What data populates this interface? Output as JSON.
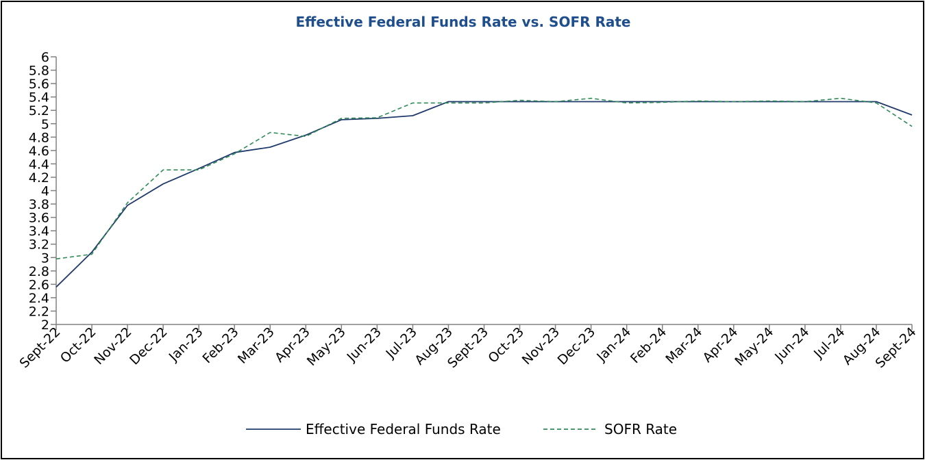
{
  "chart_data": {
    "type": "line",
    "title": "Effective Federal Funds Rate vs. SOFR Rate",
    "xlabel": "",
    "ylabel": "",
    "ylim": [
      2,
      6
    ],
    "yticks": [
      "2",
      "2.2",
      "2.4",
      "2.6",
      "2.8",
      "3",
      "3.2",
      "3.4",
      "3.6",
      "3.8",
      "4",
      "4.2",
      "4.4",
      "4.6",
      "4.8",
      "5",
      "5.2",
      "5.4",
      "5.6",
      "5.8",
      "6"
    ],
    "grid": false,
    "legend_position": "bottom",
    "categories": [
      "Sept-22",
      "Oct-22",
      "Nov-22",
      "Dec-22",
      "Jan-23",
      "Feb-23",
      "Mar-23",
      "Apr-23",
      "May-23",
      "Jun-23",
      "Jul-23",
      "Aug-23",
      "Sept-23",
      "Oct-23",
      "Nov-23",
      "Dec-23",
      "Jan-24",
      "Feb-24",
      "Mar-24",
      "Apr-24",
      "May-24",
      "Jun-24",
      "Jul-24",
      "Aug-24",
      "Sept-24"
    ],
    "series": [
      {
        "name": "Effective Federal Funds Rate",
        "color": "#1f3a6b",
        "dash": "solid",
        "values": [
          2.56,
          3.08,
          3.78,
          4.1,
          4.33,
          4.57,
          4.65,
          4.83,
          5.06,
          5.08,
          5.12,
          5.33,
          5.33,
          5.33,
          5.33,
          5.33,
          5.33,
          5.33,
          5.33,
          5.33,
          5.33,
          5.33,
          5.33,
          5.33,
          5.13
        ]
      },
      {
        "name": "SOFR Rate",
        "color": "#2e8b57",
        "dash": "dashed",
        "values": [
          2.98,
          3.05,
          3.82,
          4.31,
          4.31,
          4.55,
          4.87,
          4.81,
          5.08,
          5.09,
          5.31,
          5.31,
          5.31,
          5.35,
          5.33,
          5.38,
          5.31,
          5.32,
          5.34,
          5.33,
          5.34,
          5.33,
          5.38,
          5.31,
          4.96
        ]
      }
    ]
  }
}
